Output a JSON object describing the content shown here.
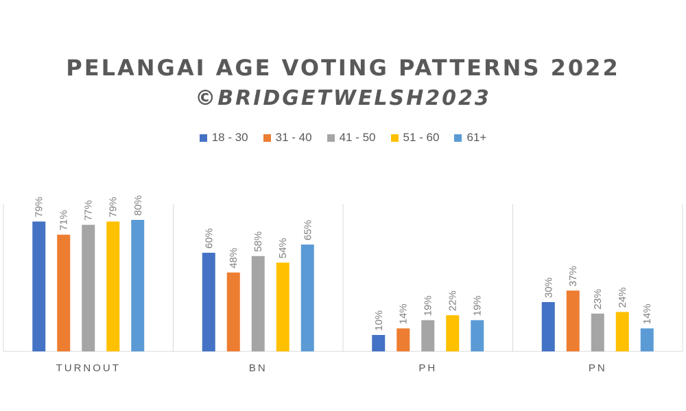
{
  "title": "PELANGAI AGE VOTING PATTERNS 2022",
  "subtitle": "©BRIDGETWELSH2023",
  "chart_data": {
    "type": "bar",
    "categories": [
      "TURNOUT",
      "BN",
      "PH",
      "PN"
    ],
    "series": [
      {
        "name": "18 - 30",
        "color": "#4472C4",
        "values": [
          79,
          60,
          10,
          30
        ]
      },
      {
        "name": "31 - 40",
        "color": "#ED7D31",
        "values": [
          71,
          48,
          14,
          37
        ]
      },
      {
        "name": "41 - 50",
        "color": "#A5A5A5",
        "values": [
          77,
          58,
          19,
          23
        ]
      },
      {
        "name": "51 - 60",
        "color": "#FFC000",
        "values": [
          79,
          54,
          22,
          24
        ]
      },
      {
        "name": "61+",
        "color": "#5B9BD5",
        "values": [
          80,
          65,
          19,
          14
        ]
      }
    ],
    "value_suffix": "%",
    "ylim": [
      0,
      90
    ],
    "legend_position": "top",
    "grid": false,
    "xlabel": "",
    "ylabel": ""
  }
}
